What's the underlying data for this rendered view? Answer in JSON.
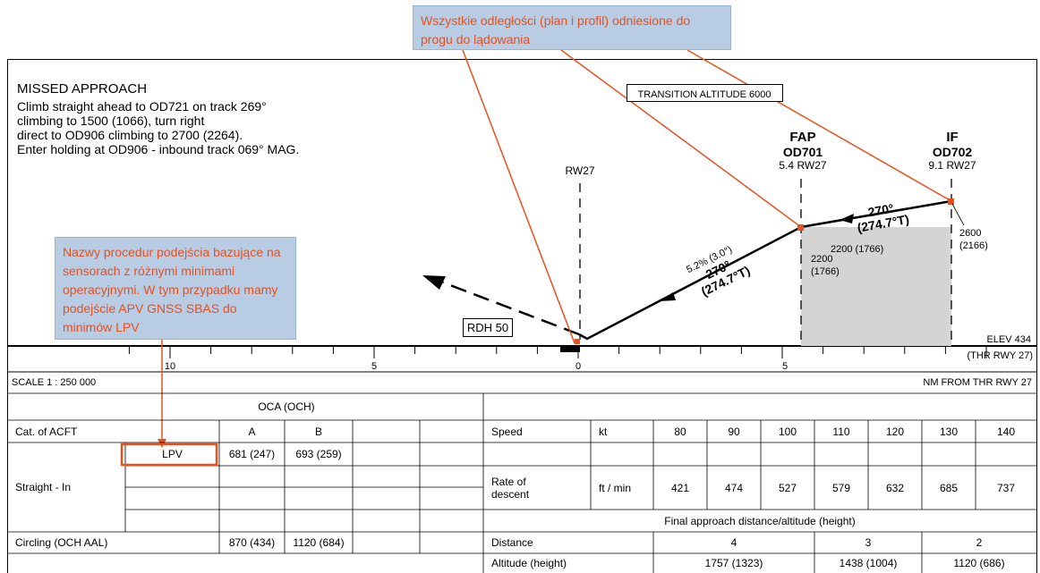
{
  "missed_approach": {
    "title": "MISSED APPROACH",
    "lines": [
      "Climb straight ahead to OD721 on track 269°",
      "climbing to 1500 (1066), turn right",
      "direct to OD906 climbing to 2700 (2264).",
      "Enter holding at OD906 - inbound track 069° MAG."
    ]
  },
  "transition_altitude": "TRANSITION ALTITUDE 6000",
  "runway_label": "RW27",
  "fap": {
    "label": "FAP",
    "name": "OD701",
    "dist": "5.4 RW27",
    "alt": "2200",
    "height": "(1766)"
  },
  "if_fix": {
    "label": "IF",
    "name": "OD702",
    "dist": "9.1 RW27",
    "alt": "2600",
    "height": "(2166)"
  },
  "segment_altitude": "2200 (1766)",
  "final_track": {
    "gradient": "5.2% (3.0°)",
    "mag": "270°",
    "true": "(274.7°T)"
  },
  "intermediate_track": {
    "mag": "270°",
    "true": "(274.7°T)"
  },
  "rdh": "RDH 50",
  "elev": "ELEV 434",
  "thr": "(THR RWY 27)",
  "scale_label": "SCALE  1 : 250 000",
  "nm_label": "NM FROM THR RWY 27",
  "axis_ticks": [
    "10",
    "5",
    "0",
    "5"
  ],
  "callouts": {
    "top": "Wszystkie odległości (plan i profil) odniesione do progu do lądowania",
    "left": "Nazwy procedur podejścia bazujące na sensorach z różnymi minimami operacyjnymi. W tym przypadku mamy podejście APV GNSS SBAS do minimów LPV"
  },
  "oca_table": {
    "header": "OCA (OCH)",
    "cat_label": "Cat. of ACFT",
    "cols": [
      "A",
      "B"
    ],
    "straight_in_label": "Straight - In",
    "lpv_label": "LPV",
    "lpv_values": [
      "681 (247)",
      "693 (259)"
    ],
    "circling_label": "Circling (OCH AAL)",
    "circling_values": [
      "870 (434)",
      "1120 (684)"
    ]
  },
  "speed_table": {
    "speed_label": "Speed",
    "speed_unit": "kt",
    "speeds": [
      "80",
      "90",
      "100",
      "110",
      "120",
      "130",
      "140"
    ],
    "rod_label": "Rate of descent",
    "rod_unit": "ft / min",
    "rods": [
      "421",
      "474",
      "527",
      "579",
      "632",
      "685",
      "737"
    ],
    "final_header": "Final approach distance/altitude (height)",
    "distance_label": "Distance",
    "distances": [
      "4",
      "3",
      "2"
    ],
    "altitude_label": "Altitude (height)",
    "altitudes": [
      "1757 (1323)",
      "1438 (1004)",
      "1120 (686)"
    ]
  }
}
